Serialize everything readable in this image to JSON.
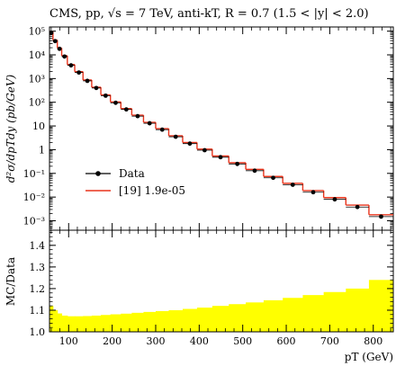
{
  "chart_data": [
    {
      "type": "line",
      "title": "CMS, pp, √s = 7 TeV, anti-kT, R = 0.7 (1.5 < |y| < 2.0)",
      "ylabel": "d²σ/dpTdy (pb/GeV)",
      "yscale": "log",
      "ylim": [
        0.0004,
        150000
      ],
      "xlim": [
        56,
        846
      ],
      "ytick_labels": [
        "10⁵",
        "10⁴",
        "10³",
        "10²",
        "10",
        "1",
        "10⁻¹",
        "10⁻²",
        "10⁻³"
      ],
      "ytick_values": [
        100000,
        10000,
        1000,
        100,
        10,
        1,
        0.1,
        0.01,
        0.001
      ],
      "legend": {
        "position": "bottom-left",
        "entries": [
          "Data",
          "[19] 1.9e-05"
        ]
      },
      "bin_edges": [
        56,
        64,
        74,
        84,
        97,
        114,
        133,
        153,
        174,
        196,
        220,
        245,
        272,
        300,
        330,
        362,
        395,
        430,
        468,
        507,
        548,
        592,
        638,
        686,
        737,
        790,
        846
      ],
      "series": [
        {
          "name": "Data",
          "style": "points",
          "color": "#000000",
          "x": [
            60,
            69,
            79,
            90.5,
            105.5,
            123.5,
            143,
            163.5,
            185,
            208,
            232.5,
            258.5,
            286,
            315,
            346,
            378.5,
            412.5,
            449,
            487.5,
            527.5,
            570,
            615,
            662,
            711.5,
            763.5,
            818
          ],
          "values": [
            85000,
            38000,
            18000,
            8500,
            3600,
            1800,
            800,
            400,
            190,
            95,
            50,
            26,
            13,
            7,
            3.5,
            1.8,
            0.95,
            0.48,
            0.25,
            0.13,
            0.065,
            0.033,
            0.016,
            0.008,
            0.0038,
            0.0015
          ]
        },
        {
          "name": "[19] 1.9e-05",
          "style": "step",
          "color": "#e8341c",
          "values": [
            95000,
            42000,
            19500,
            9200,
            3900,
            1950,
            870,
            430,
            205,
            103,
            54,
            28.5,
            14.2,
            7.7,
            3.85,
            2.0,
            1.06,
            0.54,
            0.28,
            0.148,
            0.074,
            0.038,
            0.0188,
            0.0095,
            0.0046,
            0.0018
          ]
        }
      ]
    },
    {
      "type": "area",
      "ylabel": "MC/Data",
      "xlabel": "pT (GeV)",
      "ylim": [
        1.0,
        1.47
      ],
      "ytick_labels": [
        "1.0",
        "1.1",
        "1.2",
        "1.3",
        "1.4"
      ],
      "ytick_values": [
        1.0,
        1.1,
        1.2,
        1.3,
        1.4
      ],
      "xtick_labels": [
        "100",
        "200",
        "300",
        "400",
        "500",
        "600",
        "700",
        "800"
      ],
      "xtick_values": [
        100,
        200,
        300,
        400,
        500,
        600,
        700,
        800
      ],
      "series": [
        {
          "name": "MC/Data",
          "color": "#ffff00",
          "values": [
            1.12,
            1.1,
            1.085,
            1.075,
            1.072,
            1.072,
            1.073,
            1.075,
            1.078,
            1.081,
            1.084,
            1.088,
            1.092,
            1.096,
            1.1,
            1.106,
            1.112,
            1.12,
            1.128,
            1.136,
            1.146,
            1.157,
            1.17,
            1.184,
            1.2,
            1.24
          ]
        }
      ]
    }
  ]
}
